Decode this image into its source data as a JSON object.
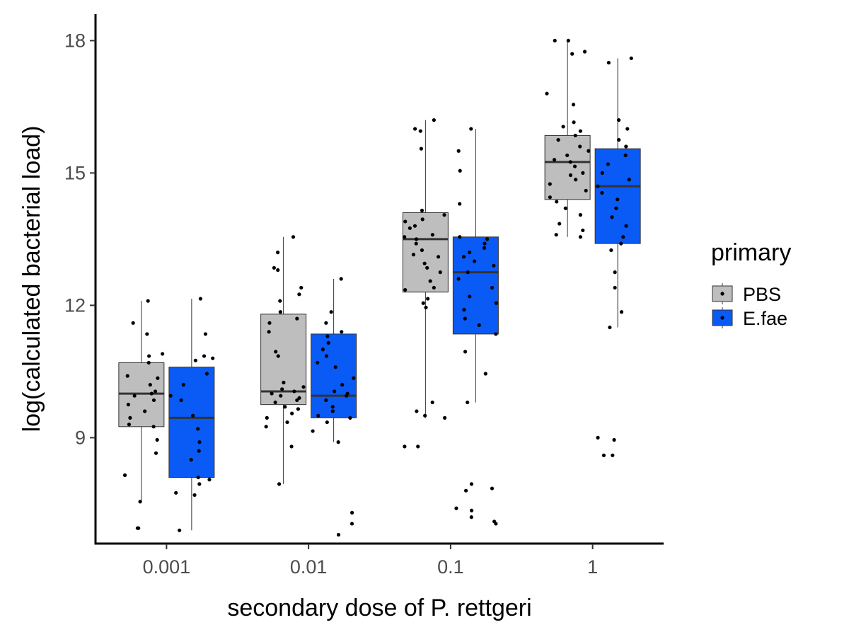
{
  "chart_data": {
    "type": "boxplot",
    "xlabel": "secondary dose of P. rettgeri",
    "ylabel": "log(calculated bacterial load)",
    "categories": [
      "0.001",
      "0.01",
      "0.1",
      "1"
    ],
    "ylim": [
      6.6,
      18.6
    ],
    "yticks": [
      9,
      12,
      15,
      18
    ],
    "legend": {
      "title": "primary",
      "position": "right"
    },
    "colors": {
      "PBS": "#bebebe",
      "E.fae": "#0a5af5"
    },
    "series": [
      {
        "name": "PBS",
        "boxes": [
          {
            "category": "0.001",
            "whisker_low": 7.55,
            "q1": 9.25,
            "median": 10.0,
            "q3": 10.7,
            "whisker_high": 12.1
          },
          {
            "category": "0.01",
            "whisker_low": 7.95,
            "q1": 9.75,
            "median": 10.05,
            "q3": 11.8,
            "whisker_high": 13.55
          },
          {
            "category": "0.1",
            "whisker_low": 9.45,
            "q1": 12.3,
            "median": 13.5,
            "q3": 14.1,
            "whisker_high": 16.2
          },
          {
            "category": "1",
            "whisker_low": 13.55,
            "q1": 14.4,
            "median": 15.25,
            "q3": 15.85,
            "whisker_high": 18.0
          }
        ],
        "outliers": [
          {
            "category": "0.001",
            "values": [
              6.95,
              6.95
            ]
          },
          {
            "category": "0.01",
            "values": []
          },
          {
            "category": "0.1",
            "values": [
              8.8,
              8.8
            ]
          },
          {
            "category": "1",
            "values": []
          }
        ],
        "points": [
          {
            "category": "0.001",
            "values": [
              12.1,
              11.6,
              11.35,
              10.9,
              10.85,
              10.7,
              10.4,
              10.35,
              10.2,
              10.05,
              10.0,
              9.95,
              9.85,
              9.75,
              9.6,
              9.45,
              9.3,
              9.25,
              8.95,
              8.65,
              8.15,
              7.55
            ]
          },
          {
            "category": "0.01",
            "values": [
              13.55,
              13.2,
              12.85,
              12.8,
              12.4,
              12.25,
              12.1,
              11.85,
              11.7,
              11.6,
              11.4,
              10.95,
              10.85,
              10.25,
              10.15,
              10.1,
              10.05,
              10.0,
              9.95,
              9.9,
              9.85,
              9.8,
              9.7,
              9.65,
              9.55,
              9.45,
              9.35,
              9.25,
              8.8,
              7.95
            ]
          },
          {
            "category": "0.1",
            "values": [
              16.2,
              16.0,
              15.95,
              15.55,
              14.15,
              14.05,
              13.95,
              13.9,
              13.8,
              13.75,
              13.6,
              13.55,
              13.5,
              13.4,
              13.25,
              13.15,
              13.1,
              12.95,
              12.85,
              12.75,
              12.55,
              12.4,
              12.35,
              12.15,
              12.05,
              11.95,
              9.8,
              9.6,
              9.5,
              9.45
            ]
          },
          {
            "category": "1",
            "values": [
              18.0,
              18.0,
              17.75,
              17.7,
              16.8,
              16.55,
              16.15,
              16.05,
              15.95,
              15.85,
              15.75,
              15.6,
              15.5,
              15.4,
              15.3,
              15.25,
              15.15,
              15.0,
              14.95,
              14.85,
              14.75,
              14.6,
              14.45,
              14.35,
              14.2,
              14.05,
              13.85,
              13.7,
              13.6,
              13.55
            ]
          }
        ]
      },
      {
        "name": "E.fae",
        "boxes": [
          {
            "category": "0.001",
            "whisker_low": 6.9,
            "q1": 8.1,
            "median": 9.45,
            "q3": 10.6,
            "whisker_high": 12.15
          },
          {
            "category": "0.01",
            "whisker_low": 8.9,
            "q1": 9.45,
            "median": 9.95,
            "q3": 11.35,
            "whisker_high": 12.6
          },
          {
            "category": "0.1",
            "whisker_low": 9.8,
            "q1": 11.35,
            "median": 12.75,
            "q3": 13.55,
            "whisker_high": 16.0
          },
          {
            "category": "1",
            "whisker_low": 11.5,
            "q1": 13.4,
            "median": 14.7,
            "q3": 15.55,
            "whisker_high": 17.6
          }
        ],
        "outliers": [
          {
            "category": "0.001",
            "values": []
          },
          {
            "category": "0.01",
            "values": [
              7.3,
              7.05,
              6.8
            ]
          },
          {
            "category": "0.1",
            "values": [
              7.95,
              7.85,
              7.8,
              7.4,
              7.35,
              7.2,
              7.1,
              7.05
            ]
          },
          {
            "category": "1",
            "values": [
              9.0,
              8.95,
              8.6,
              8.6
            ]
          }
        ],
        "points": [
          {
            "category": "0.001",
            "values": [
              12.15,
              11.35,
              10.85,
              10.8,
              10.75,
              10.45,
              10.2,
              9.95,
              9.85,
              9.5,
              9.2,
              8.9,
              8.7,
              8.5,
              8.1,
              8.05,
              7.95,
              7.75,
              7.7,
              6.9
            ]
          },
          {
            "category": "0.01",
            "values": [
              12.6,
              11.85,
              11.6,
              11.4,
              11.3,
              11.15,
              11.0,
              10.85,
              10.7,
              10.6,
              10.35,
              10.2,
              10.05,
              10.0,
              9.95,
              9.85,
              9.7,
              9.6,
              9.5,
              9.45,
              9.35,
              9.15,
              8.9
            ]
          },
          {
            "category": "0.1",
            "values": [
              16.0,
              15.5,
              15.05,
              14.3,
              13.55,
              13.5,
              13.4,
              13.3,
              13.2,
              13.1,
              13.0,
              12.9,
              12.75,
              12.6,
              12.4,
              12.2,
              12.05,
              11.9,
              11.7,
              11.55,
              11.35,
              10.95,
              10.45,
              9.8
            ]
          },
          {
            "category": "1",
            "values": [
              17.6,
              17.5,
              16.2,
              16.0,
              15.75,
              15.6,
              15.4,
              15.2,
              15.0,
              14.85,
              14.7,
              14.55,
              14.4,
              14.2,
              14.0,
              13.8,
              13.55,
              13.4,
              13.25,
              12.75,
              12.4,
              11.85,
              11.5
            ]
          }
        ]
      }
    ]
  }
}
